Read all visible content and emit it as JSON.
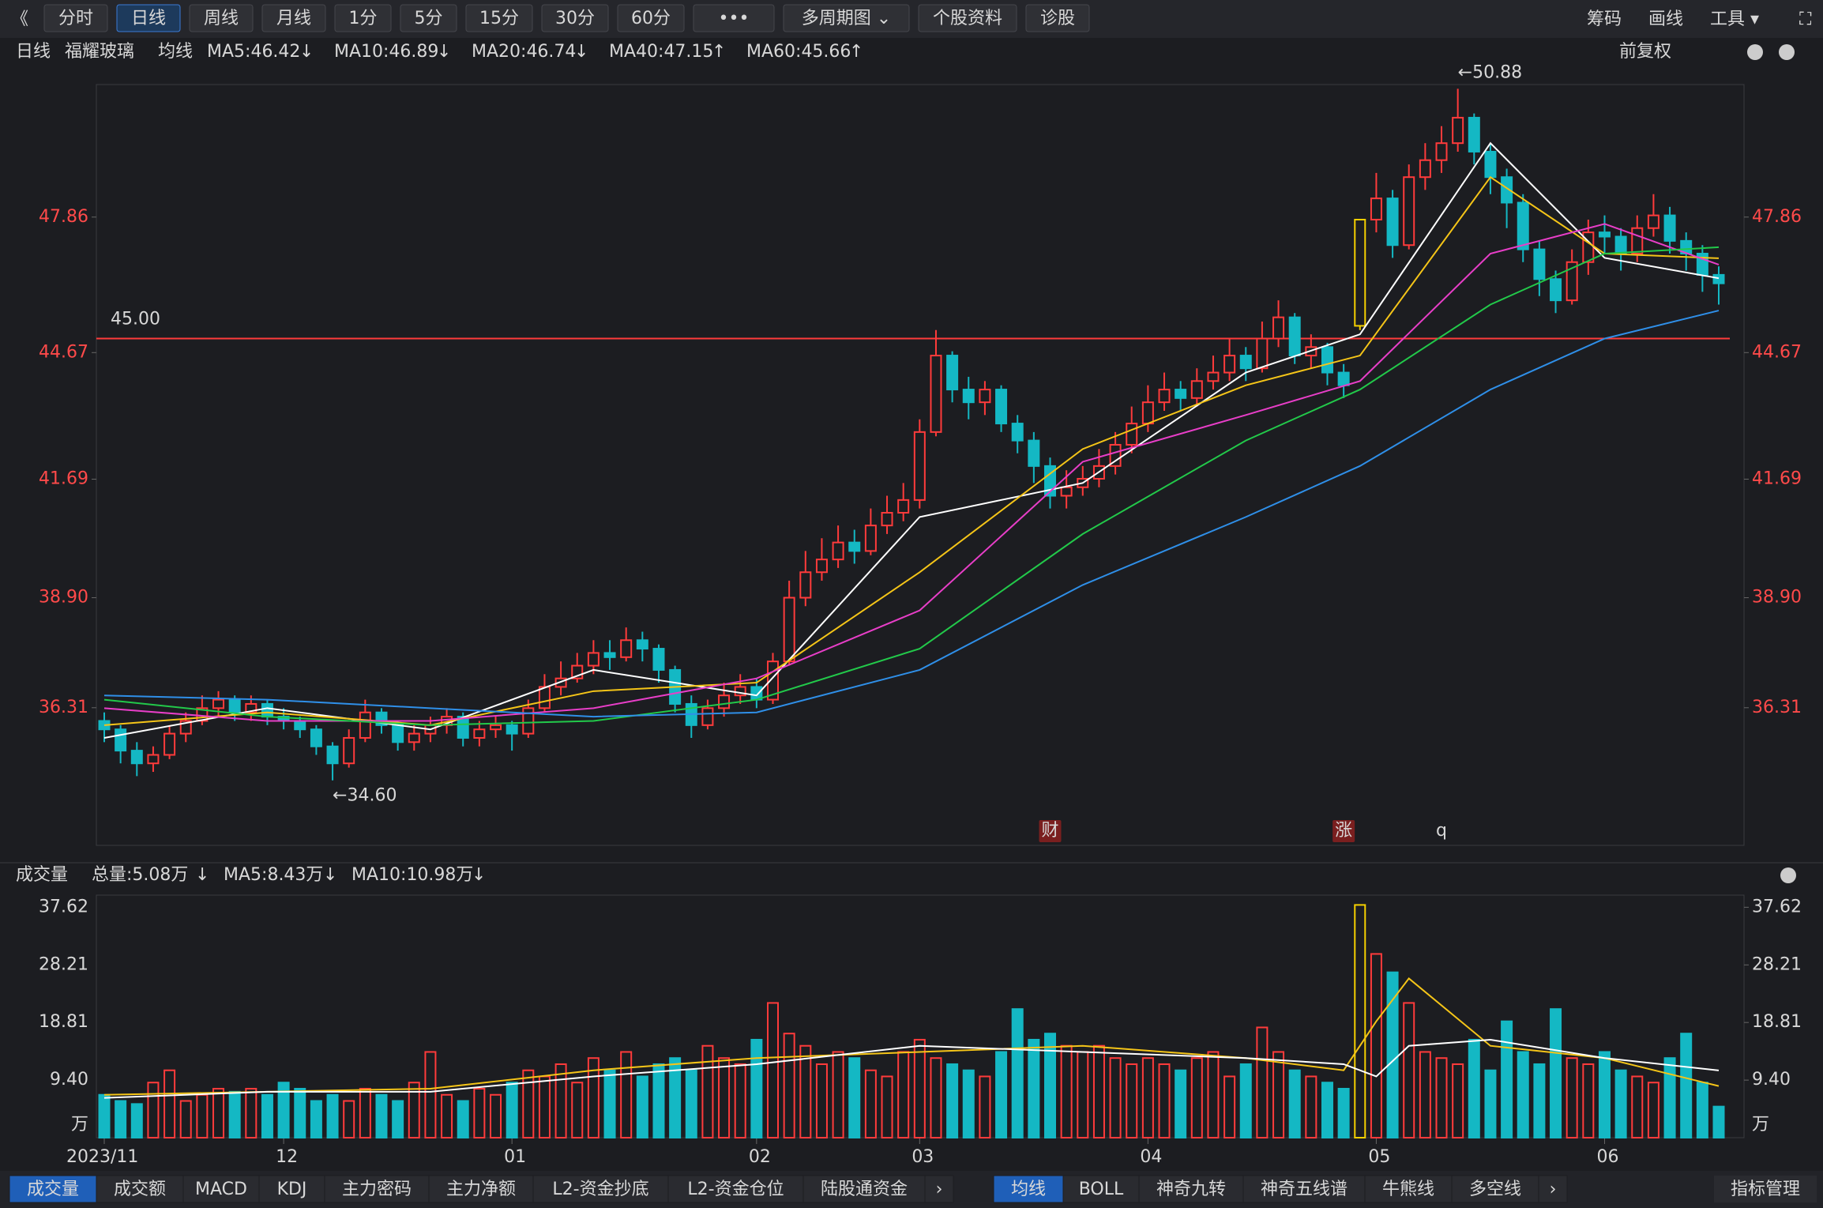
{
  "toolbar": {
    "back": "《",
    "buttons": [
      {
        "label": "分时"
      },
      {
        "label": "日线",
        "active": true
      },
      {
        "label": "周线"
      },
      {
        "label": "月线"
      },
      {
        "label": "1分"
      },
      {
        "label": "5分"
      },
      {
        "label": "15分"
      },
      {
        "label": "30分"
      },
      {
        "label": "60分"
      },
      {
        "label": "•••"
      },
      {
        "label": "多周期图 ⌄"
      },
      {
        "label": "个股资料"
      },
      {
        "label": "诊股"
      }
    ],
    "right": [
      "筹码",
      "画线",
      "工具 ▾",
      "⛶"
    ]
  },
  "legend": {
    "period": "日线",
    "stock": "福耀玻璃",
    "group": "均线",
    "items": [
      {
        "label": "MA5:46.42",
        "arrow": "↓",
        "color": "#ffffff",
        "arrow_color": "#1fd15a"
      },
      {
        "label": "MA10:46.89",
        "arrow": "↓",
        "color": "#f5c518",
        "arrow_color": "#1fd15a"
      },
      {
        "label": "MA20:46.74",
        "arrow": "↓",
        "color": "#e83ec8",
        "arrow_color": "#1fd15a"
      },
      {
        "label": "MA40:47.15",
        "arrow": "↑",
        "color": "#22c94a",
        "arrow_color": "#ff3b3b"
      },
      {
        "label": "MA60:45.66",
        "arrow": "↑",
        "color": "#2f8fe8",
        "arrow_color": "#ff3b3b"
      }
    ],
    "right": "前复权"
  },
  "chart_data": {
    "type": "candlestick",
    "up_color": "#ff3b3b",
    "down_color": "#14b8c4",
    "limit_up_color": "#f5d000",
    "limit_up": [
      77
    ],
    "categories": [
      "2023/11",
      null,
      null,
      null,
      null,
      null,
      null,
      null,
      null,
      null,
      null,
      "12",
      null,
      null,
      null,
      null,
      null,
      null,
      null,
      null,
      null,
      null,
      null,
      null,
      null,
      "01",
      null,
      null,
      null,
      null,
      null,
      null,
      null,
      null,
      null,
      null,
      null,
      null,
      null,
      null,
      "02",
      null,
      null,
      null,
      null,
      null,
      null,
      null,
      null,
      null,
      "03",
      null,
      null,
      null,
      null,
      null,
      null,
      null,
      null,
      null,
      null,
      null,
      null,
      null,
      "04",
      null,
      null,
      null,
      null,
      null,
      null,
      null,
      null,
      null,
      null,
      null,
      null,
      null,
      "05",
      null,
      null,
      null,
      null,
      null,
      null,
      null,
      null,
      null,
      null,
      null,
      null,
      null,
      "06",
      null,
      null,
      null,
      null,
      null,
      null,
      null
    ],
    "candles": [
      [
        36.0,
        35.8,
        36.2,
        35.5
      ],
      [
        35.8,
        35.3,
        35.9,
        35.0
      ],
      [
        35.3,
        35.0,
        35.5,
        34.7
      ],
      [
        35.0,
        35.2,
        35.4,
        34.8
      ],
      [
        35.2,
        35.7,
        35.9,
        35.1
      ],
      [
        35.7,
        36.0,
        36.2,
        35.5
      ],
      [
        36.0,
        36.3,
        36.6,
        35.9
      ],
      [
        36.3,
        36.5,
        36.7,
        36.1
      ],
      [
        36.5,
        36.2,
        36.6,
        36.0
      ],
      [
        36.2,
        36.4,
        36.6,
        36.0
      ],
      [
        36.4,
        36.1,
        36.5,
        35.9
      ],
      [
        36.1,
        36.0,
        36.3,
        35.8
      ],
      [
        36.0,
        35.8,
        36.1,
        35.6
      ],
      [
        35.8,
        35.4,
        35.9,
        35.2
      ],
      [
        35.4,
        35.0,
        35.5,
        34.6
      ],
      [
        35.0,
        35.6,
        35.8,
        34.9
      ],
      [
        35.6,
        36.2,
        36.5,
        35.5
      ],
      [
        36.2,
        35.9,
        36.3,
        35.7
      ],
      [
        35.9,
        35.5,
        36.0,
        35.3
      ],
      [
        35.5,
        35.7,
        35.9,
        35.3
      ],
      [
        35.7,
        35.9,
        36.1,
        35.5
      ],
      [
        35.9,
        36.1,
        36.3,
        35.7
      ],
      [
        36.1,
        35.6,
        36.2,
        35.4
      ],
      [
        35.6,
        35.8,
        36.0,
        35.4
      ],
      [
        35.8,
        35.9,
        36.1,
        35.6
      ],
      [
        35.9,
        35.7,
        36.0,
        35.3
      ],
      [
        35.7,
        36.3,
        36.5,
        35.6
      ],
      [
        36.3,
        36.8,
        37.1,
        36.2
      ],
      [
        36.8,
        37.0,
        37.4,
        36.6
      ],
      [
        37.0,
        37.3,
        37.6,
        36.9
      ],
      [
        37.3,
        37.6,
        37.9,
        37.1
      ],
      [
        37.6,
        37.5,
        37.9,
        37.2
      ],
      [
        37.5,
        37.9,
        38.2,
        37.4
      ],
      [
        37.9,
        37.7,
        38.1,
        37.4
      ],
      [
        37.7,
        37.2,
        37.8,
        36.9
      ],
      [
        37.2,
        36.4,
        37.3,
        36.2
      ],
      [
        36.4,
        35.9,
        36.6,
        35.6
      ],
      [
        35.9,
        36.3,
        36.5,
        35.8
      ],
      [
        36.3,
        36.6,
        36.9,
        36.1
      ],
      [
        36.6,
        36.8,
        37.1,
        36.4
      ],
      [
        36.8,
        36.5,
        37.0,
        36.3
      ],
      [
        36.5,
        37.4,
        37.6,
        36.4
      ],
      [
        37.4,
        38.9,
        39.3,
        37.3
      ],
      [
        38.9,
        39.5,
        40.0,
        38.7
      ],
      [
        39.5,
        39.8,
        40.3,
        39.3
      ],
      [
        39.8,
        40.2,
        40.6,
        39.6
      ],
      [
        40.2,
        40.0,
        40.5,
        39.7
      ],
      [
        40.0,
        40.6,
        41.0,
        39.9
      ],
      [
        40.6,
        40.9,
        41.3,
        40.4
      ],
      [
        40.9,
        41.2,
        41.6,
        40.7
      ],
      [
        41.2,
        42.8,
        43.1,
        41.0
      ],
      [
        42.8,
        44.6,
        45.2,
        42.7
      ],
      [
        44.6,
        43.8,
        44.7,
        43.5
      ],
      [
        43.8,
        43.5,
        44.1,
        43.1
      ],
      [
        43.5,
        43.8,
        44.0,
        43.2
      ],
      [
        43.8,
        43.0,
        43.9,
        42.8
      ],
      [
        43.0,
        42.6,
        43.2,
        42.3
      ],
      [
        42.6,
        42.0,
        42.8,
        41.6
      ],
      [
        42.0,
        41.3,
        42.2,
        41.0
      ],
      [
        41.3,
        41.5,
        41.9,
        41.0
      ],
      [
        41.5,
        41.7,
        42.0,
        41.3
      ],
      [
        41.7,
        42.0,
        42.4,
        41.5
      ],
      [
        42.0,
        42.5,
        42.8,
        41.8
      ],
      [
        42.5,
        43.0,
        43.4,
        42.3
      ],
      [
        43.0,
        43.5,
        43.9,
        42.8
      ],
      [
        43.5,
        43.8,
        44.2,
        43.3
      ],
      [
        43.8,
        43.6,
        44.0,
        43.3
      ],
      [
        43.6,
        44.0,
        44.3,
        43.4
      ],
      [
        44.0,
        44.2,
        44.6,
        43.8
      ],
      [
        44.2,
        44.6,
        45.0,
        44.0
      ],
      [
        44.6,
        44.3,
        44.8,
        44.0
      ],
      [
        44.3,
        45.0,
        45.4,
        44.2
      ],
      [
        45.0,
        45.5,
        45.9,
        44.8
      ],
      [
        45.5,
        44.6,
        45.6,
        44.4
      ],
      [
        44.6,
        44.8,
        45.1,
        44.3
      ],
      [
        44.8,
        44.2,
        44.9,
        43.9
      ],
      [
        44.2,
        43.9,
        44.4,
        43.6
      ],
      [
        45.3,
        47.8,
        47.8,
        45.2
      ],
      [
        47.8,
        48.3,
        48.9,
        47.5
      ],
      [
        48.3,
        47.2,
        48.5,
        46.9
      ],
      [
        47.2,
        48.8,
        49.1,
        47.1
      ],
      [
        48.8,
        49.2,
        49.6,
        48.5
      ],
      [
        49.2,
        49.6,
        50.0,
        48.9
      ],
      [
        49.6,
        50.2,
        50.88,
        49.4
      ],
      [
        50.2,
        49.4,
        50.3,
        49.1
      ],
      [
        49.4,
        48.8,
        49.6,
        48.4
      ],
      [
        48.8,
        48.2,
        49.0,
        47.6
      ],
      [
        48.2,
        47.1,
        48.4,
        46.8
      ],
      [
        47.1,
        46.4,
        47.3,
        46.0
      ],
      [
        46.4,
        45.9,
        46.6,
        45.6
      ],
      [
        45.9,
        46.8,
        47.1,
        45.8
      ],
      [
        46.8,
        47.5,
        47.8,
        46.5
      ],
      [
        47.5,
        47.4,
        47.9,
        47.0
      ],
      [
        47.4,
        47.0,
        47.6,
        46.6
      ],
      [
        47.0,
        47.6,
        47.9,
        46.8
      ],
      [
        47.6,
        47.9,
        48.4,
        47.4
      ],
      [
        47.9,
        47.3,
        48.1,
        47.0
      ],
      [
        47.3,
        47.0,
        47.5,
        46.6
      ],
      [
        47.0,
        46.5,
        47.2,
        46.1
      ],
      [
        46.5,
        46.3,
        46.7,
        45.8
      ]
    ],
    "ylim": [
      33.07,
      50.98
    ],
    "yticks": [
      36.31,
      {
        "value": 38.9,
        "label": "38.90"
      },
      41.69,
      44.67,
      47.86
    ],
    "hline": {
      "value": 45,
      "label": "45.00",
      "color": "#ff3b3b"
    },
    "annotations": [
      {
        "index": 14,
        "text": "←34.60",
        "at": "low"
      },
      {
        "index": 83,
        "text": "←50.88",
        "at": "high"
      }
    ],
    "markers": [
      {
        "index": 58,
        "text": "财",
        "box": true
      },
      {
        "index": 76,
        "text": "涨",
        "box": true
      },
      {
        "index": 82,
        "text": "q",
        "box": false
      }
    ],
    "ma_lines": [
      {
        "name": "MA5",
        "color": "#ffffff",
        "x": [
          0,
          10,
          20,
          30,
          40,
          50,
          60,
          70,
          77,
          85,
          92,
          99
        ],
        "values": [
          35.6,
          36.3,
          35.8,
          37.2,
          36.6,
          40.8,
          41.6,
          44.2,
          45.1,
          49.6,
          46.9,
          46.42
        ]
      },
      {
        "name": "MA10",
        "color": "#f5c518",
        "x": [
          0,
          10,
          20,
          30,
          40,
          50,
          60,
          70,
          77,
          85,
          92,
          99
        ],
        "values": [
          35.9,
          36.2,
          35.9,
          36.7,
          36.9,
          39.5,
          42.4,
          43.9,
          44.6,
          48.8,
          47.0,
          46.89
        ]
      },
      {
        "name": "MA20",
        "color": "#e83ec8",
        "x": [
          0,
          10,
          20,
          30,
          40,
          50,
          60,
          70,
          77,
          85,
          92,
          99
        ],
        "values": [
          36.3,
          36.0,
          36.0,
          36.3,
          37.0,
          38.6,
          42.1,
          43.2,
          44.0,
          47.0,
          47.7,
          46.74
        ]
      },
      {
        "name": "MA40",
        "color": "#22c94a",
        "x": [
          0,
          10,
          20,
          30,
          40,
          50,
          60,
          70,
          77,
          85,
          92,
          99
        ],
        "values": [
          36.5,
          36.1,
          35.9,
          36.0,
          36.5,
          37.7,
          40.4,
          42.6,
          43.8,
          45.8,
          47.0,
          47.15
        ]
      },
      {
        "name": "MA60",
        "color": "#2f8fe8",
        "x": [
          0,
          10,
          20,
          30,
          40,
          50,
          60,
          70,
          77,
          85,
          92,
          99
        ],
        "values": [
          36.6,
          36.5,
          36.3,
          36.1,
          36.2,
          37.2,
          39.2,
          40.8,
          42.0,
          43.8,
          45.0,
          45.66
        ]
      }
    ]
  },
  "volume": {
    "title": "成交量",
    "labels": [
      {
        "text": "总量:5.08万",
        "arrow": "↓",
        "color": "#14b8c4"
      },
      {
        "text": "MA5:8.43万",
        "arrow": "↓",
        "color": "#f5c518"
      },
      {
        "text": "MA10:10.98万",
        "arrow": "↓",
        "color": "#ffffff"
      }
    ],
    "arrow_color": "#1fd15a",
    "ylim": [
      0,
      39.6
    ],
    "yticks": [
      {
        "value": 9.4,
        "label": "9.40"
      },
      18.81,
      28.21,
      37.62
    ],
    "unit": "万",
    "values": [
      7,
      6,
      5.5,
      9,
      11,
      6,
      7,
      8,
      7.5,
      8,
      7,
      9,
      8,
      6,
      7,
      6,
      8,
      7,
      6,
      9,
      14,
      7,
      6,
      8,
      7,
      9,
      11,
      10,
      12,
      9,
      13,
      11,
      14,
      10,
      12,
      13,
      11,
      15,
      13,
      12,
      16,
      22,
      17,
      15,
      12,
      14,
      13,
      11,
      10,
      14,
      16,
      13,
      12,
      11,
      10,
      14,
      21,
      16,
      17,
      15,
      14,
      15,
      13,
      12,
      13,
      12,
      11,
      13,
      14,
      10,
      12,
      18,
      14,
      11,
      10,
      9,
      8,
      38,
      30,
      27,
      22,
      14,
      13,
      12,
      16,
      11,
      19,
      14,
      12,
      21,
      13,
      12,
      14,
      11,
      10,
      9,
      13,
      17,
      9,
      5.08
    ],
    "ma_lines": [
      {
        "name": "MA5",
        "color": "#f5c518",
        "x": [
          0,
          10,
          20,
          30,
          40,
          50,
          60,
          70,
          76,
          78,
          80,
          85,
          92,
          99
        ],
        "values": [
          7,
          7.5,
          8,
          11,
          13,
          14,
          15,
          13,
          11,
          19,
          26,
          15,
          13,
          8.43
        ]
      },
      {
        "name": "MA10",
        "color": "#ffffff",
        "x": [
          0,
          10,
          20,
          30,
          40,
          50,
          60,
          70,
          76,
          78,
          80,
          85,
          92,
          99
        ],
        "values": [
          6.5,
          7.5,
          7.5,
          10,
          12,
          15,
          14,
          13,
          12,
          10,
          15,
          16,
          13,
          10.98
        ]
      }
    ]
  },
  "tabs_left": [
    {
      "label": "成交量",
      "active": true
    },
    {
      "label": "成交额"
    },
    {
      "label": "MACD"
    },
    {
      "label": "KDJ"
    },
    {
      "label": "主力密码"
    },
    {
      "label": "主力净额"
    },
    {
      "label": "L2-资金抄底"
    },
    {
      "label": "L2-资金仓位"
    },
    {
      "label": "陆股通资金"
    },
    {
      "label": "›"
    }
  ],
  "tabs_right": [
    {
      "label": "均线",
      "active": true
    },
    {
      "label": "BOLL"
    },
    {
      "label": "神奇九转"
    },
    {
      "label": "神奇五线谱"
    },
    {
      "label": "牛熊线"
    },
    {
      "label": "多空线"
    },
    {
      "label": "›"
    }
  ],
  "tab_manage": "指标管理"
}
